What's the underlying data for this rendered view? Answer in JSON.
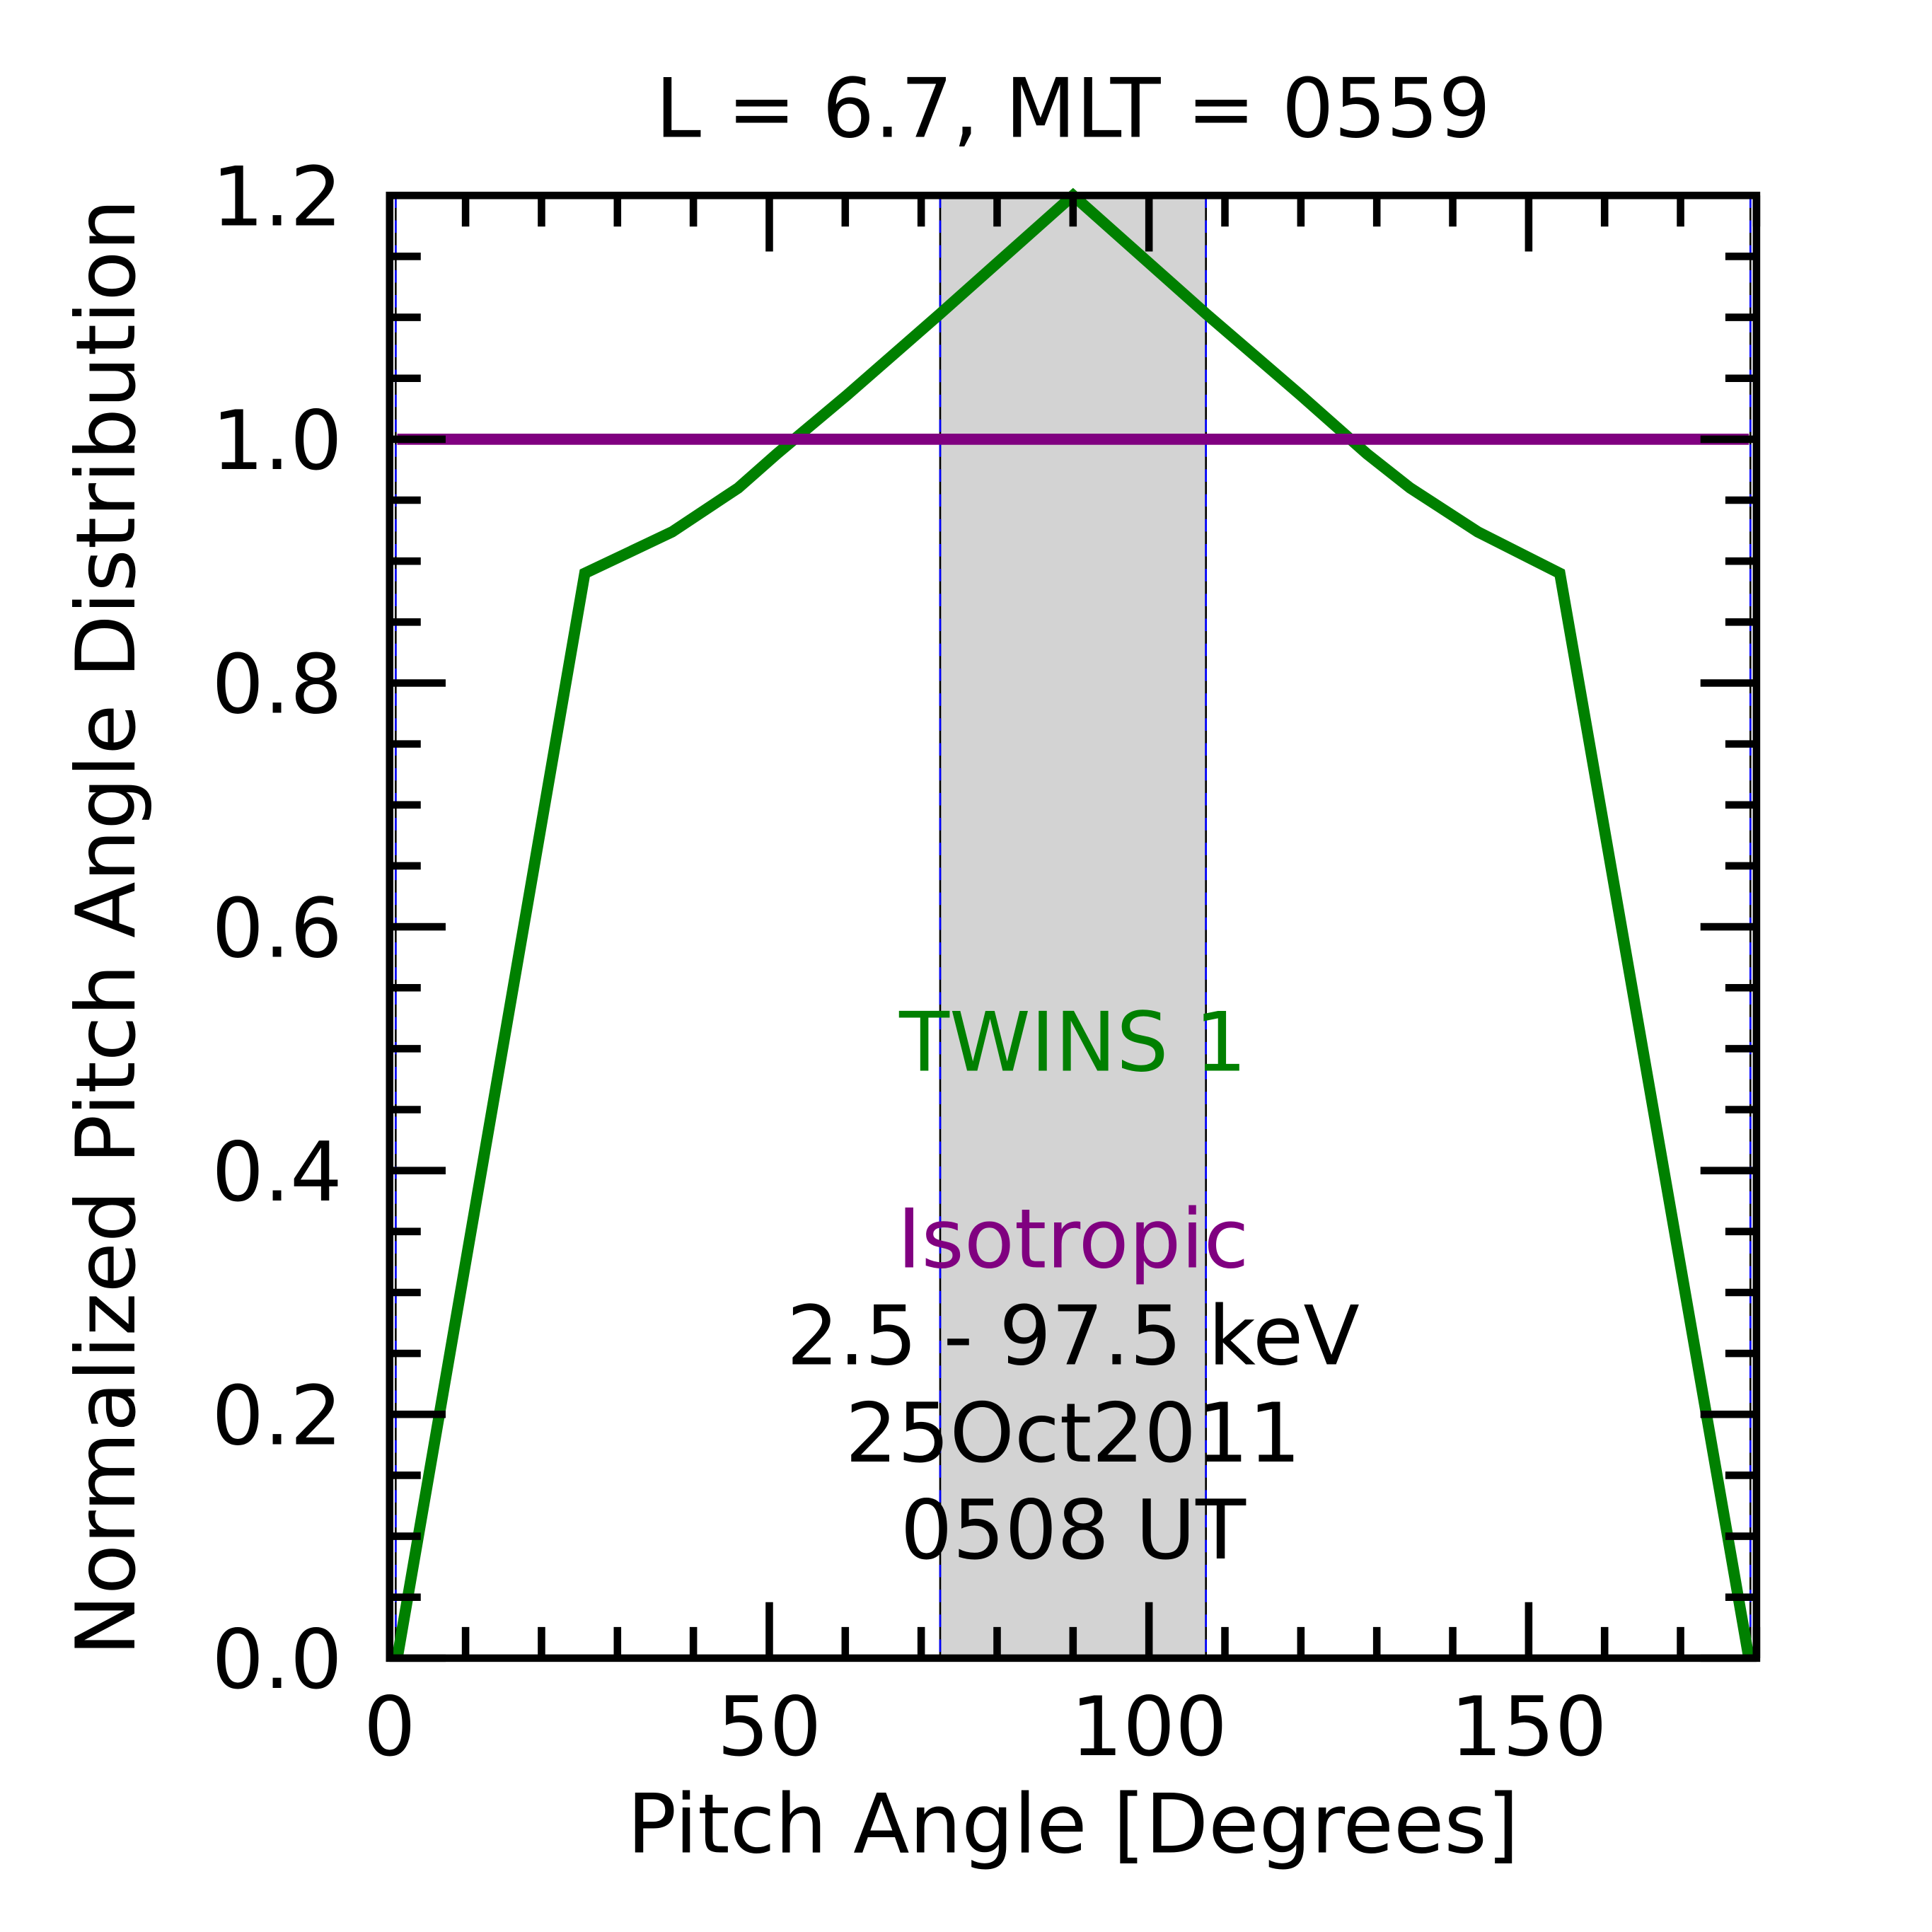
{
  "chart_data": {
    "type": "line",
    "title": "L =  6.7, MLT = 0559",
    "xlabel": "Pitch Angle [Degrees]",
    "ylabel": "Normalized Pitch Angle Distribution",
    "xlim": [
      0,
      180
    ],
    "ylim": [
      0,
      1.2
    ],
    "xticks": [
      0,
      50,
      100,
      150
    ],
    "xtick_labels": [
      "0",
      "50",
      "100",
      "150"
    ],
    "yticks": [
      0.0,
      0.2,
      0.4,
      0.6,
      0.8,
      1.0,
      1.2
    ],
    "ytick_labels": [
      "0.0",
      "0.2",
      "0.4",
      "0.6",
      "0.8",
      "1.0",
      "1.2"
    ],
    "grid": false,
    "shaded_band": {
      "x0": 72.5,
      "x1": 107.5,
      "color": "#d3d3d3"
    },
    "series": [
      {
        "name": "TWINS 1",
        "color": "#008000",
        "x": [
          1,
          25.7,
          37.2,
          45.9,
          51,
          60.2,
          72.5,
          90,
          107.5,
          120,
          128.7,
          134.4,
          143.3,
          154.1,
          179
        ],
        "y": [
          0.0,
          0.89,
          0.924,
          0.96,
          0.988,
          1.036,
          1.103,
          1.2,
          1.103,
          1.036,
          0.988,
          0.96,
          0.924,
          0.89,
          0.0
        ]
      },
      {
        "name": "Isotropic",
        "color": "#800080",
        "x": [
          1,
          179
        ],
        "y": [
          1.0,
          1.0
        ]
      }
    ],
    "annotations": [
      "TWINS 1",
      "Isotropic",
      "2.5 - 97.5 keV",
      "25Oct2011",
      "0508 UT"
    ]
  }
}
